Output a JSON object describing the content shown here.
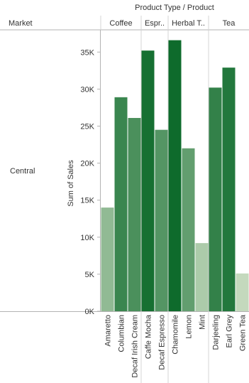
{
  "header": {
    "column_shelf_title": "Product Type  /  Product",
    "row_header": "Market"
  },
  "rows": [
    {
      "label": "Central"
    }
  ],
  "colors": {
    "bar_light": "#c4d9bd",
    "bar_dark": "#0e6b2c",
    "axis": "#b3b3b3",
    "divider": "#d4d4d4"
  },
  "chart_data": {
    "type": "bar",
    "market": "Central",
    "groups": [
      {
        "name": "Coffee",
        "header_label": "Coffee",
        "products": [
          "Amaretto",
          "Columbian",
          "Decaf Irish Cream"
        ]
      },
      {
        "name": "Espresso",
        "header_label": "Espr..",
        "products": [
          "Caffe Mocha",
          "Decaf Espresso"
        ]
      },
      {
        "name": "Herbal Tea",
        "header_label": "Herbal T..",
        "products": [
          "Chamomile",
          "Lemon",
          "Mint"
        ]
      },
      {
        "name": "Tea",
        "header_label": "Tea",
        "products": [
          "Darjeeling",
          "Earl Grey",
          "Green Tea"
        ]
      }
    ],
    "categories": [
      "Amaretto",
      "Columbian",
      "Decaf Irish Cream",
      "Caffe Mocha",
      "Decaf Espresso",
      "Chamomile",
      "Lemon",
      "Mint",
      "Darjeeling",
      "Earl Grey",
      "Green Tea"
    ],
    "values": [
      14000,
      28900,
      26100,
      35200,
      24500,
      36600,
      22000,
      9200,
      30200,
      32900,
      5100
    ],
    "ylabel": "Sum of Sales",
    "ylim": [
      0,
      38000
    ],
    "yticks": [
      0,
      5000,
      10000,
      15000,
      20000,
      25000,
      30000,
      35000
    ],
    "ytick_labels": [
      "0K",
      "5K",
      "10K",
      "15K",
      "20K",
      "25K",
      "30K",
      "35K"
    ],
    "color_encoding": "Sum of Sales (light to dark green)",
    "grid": false
  }
}
